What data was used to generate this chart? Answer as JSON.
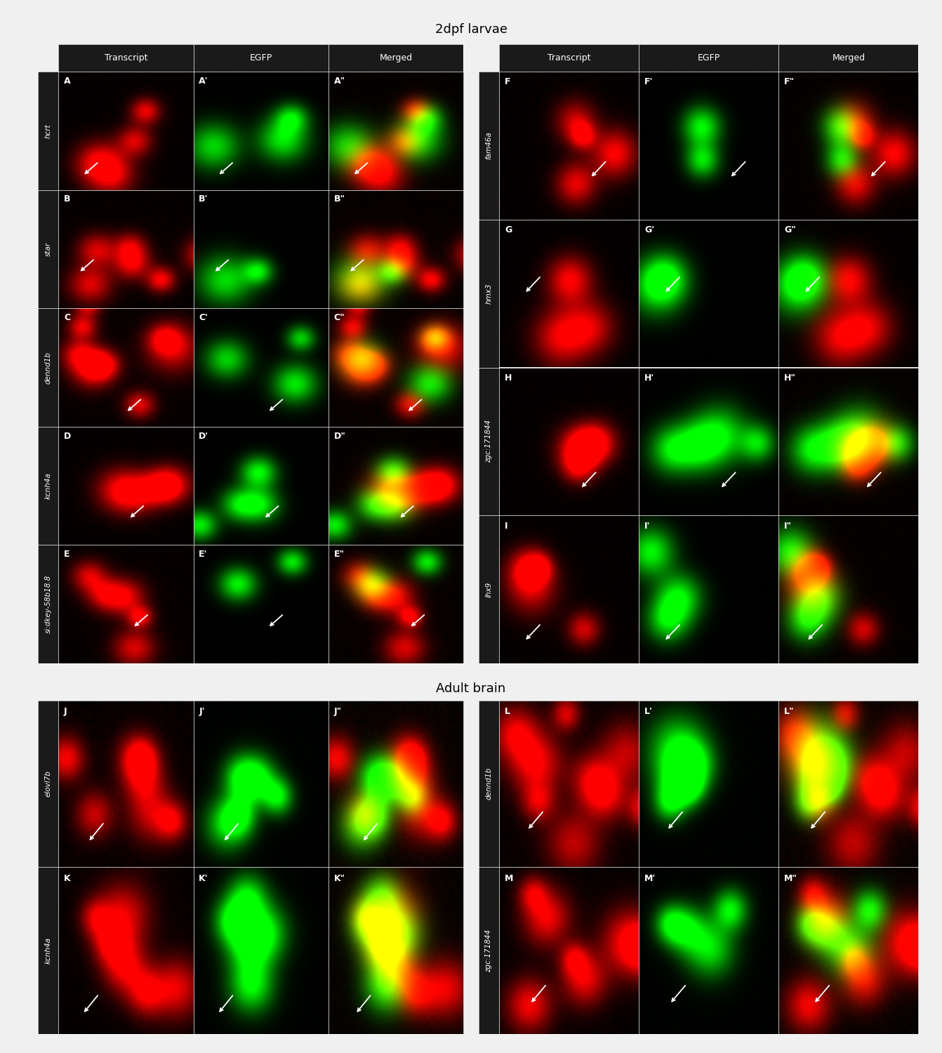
{
  "title_top": "2dpf larvae",
  "title_bottom": "Adult brain",
  "outer_bg": "#f0f0f0",
  "header_bg": "#1a1a1a",
  "header_text_color": "#ffffff",
  "row_label_bg": "#1a1a1a",
  "row_label_text_color": "#ffffff",
  "panel_border_color": "#ffffff",
  "col_headers_left": [
    "Transcript",
    "EGFP",
    "Merged"
  ],
  "col_headers_right": [
    "Transcript",
    "EGFP",
    "Merged"
  ],
  "row_labels_larva_left": [
    "hcrt",
    "star",
    "dennd1b",
    "kcnh4a",
    "si:dkey-58b18.8"
  ],
  "row_labels_larva_right": [
    "fam46a",
    "hmx3",
    "zgc:171844",
    "lhx9"
  ],
  "row_labels_adult_left": [
    "elovl7b",
    "kcnh4a"
  ],
  "row_labels_adult_right": [
    "dennd1b",
    "zgc:171844"
  ],
  "panel_labels_larva_left": [
    [
      "A",
      "A'",
      "A\""
    ],
    [
      "B",
      "B'",
      "B\""
    ],
    [
      "C",
      "C'",
      "C\""
    ],
    [
      "D",
      "D'",
      "D\""
    ],
    [
      "E",
      "E'",
      "E\""
    ]
  ],
  "panel_labels_larva_right": [
    [
      "F",
      "F'",
      "F\""
    ],
    [
      "G",
      "G'",
      "G\""
    ],
    [
      "H",
      "H'",
      "H\""
    ],
    [
      "I",
      "I'",
      "I\""
    ]
  ],
  "panel_labels_adult_left": [
    [
      "J",
      "J'",
      "J\""
    ],
    [
      "K",
      "K'",
      "K\""
    ]
  ],
  "panel_labels_adult_right": [
    [
      "L",
      "L'",
      "L\""
    ],
    [
      "M",
      "M'",
      "M\""
    ]
  ],
  "figure_width": 13.42,
  "figure_height": 15.0
}
